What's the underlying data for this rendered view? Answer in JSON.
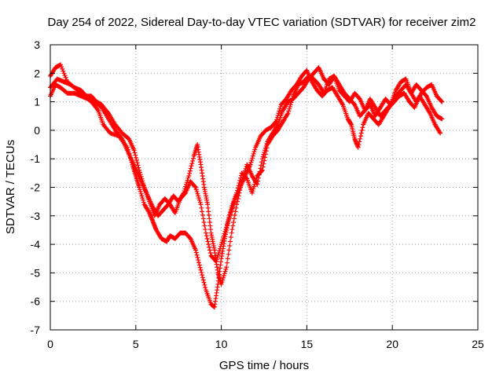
{
  "chart_data": {
    "type": "scatter",
    "title": "Day 254 of 2022, Sidereal Day-to-day VTEC variation (SDTVAR) for receiver zim2",
    "xlabel": "GPS time / hours",
    "ylabel": "SDTVAR / TECUs",
    "xlim": [
      0,
      25
    ],
    "ylim": [
      -7,
      3
    ],
    "xticks": [
      "0",
      "5",
      "10",
      "15",
      "20",
      "25"
    ],
    "yticks": [
      "-7",
      "-6",
      "-5",
      "-4",
      "-3",
      "-2",
      "-1",
      "0",
      "1",
      "2",
      "3"
    ],
    "grid": true,
    "marker": "plus",
    "color": "#ff0000",
    "series": [
      {
        "x": [
          0.0,
          0.4,
          0.8,
          1.2,
          1.6,
          2.0,
          2.4,
          2.8,
          3.1,
          3.5,
          4.0,
          4.5,
          4.8,
          5.0,
          5.2,
          5.5,
          5.8,
          6.0,
          6.2,
          6.5,
          6.8,
          7.0,
          7.3,
          7.6,
          7.9,
          8.2,
          8.5,
          8.8,
          9.1,
          9.4,
          9.6,
          9.8,
          10.0,
          10.2,
          10.4,
          10.6,
          10.8,
          11.1,
          11.4,
          11.7,
          12.0,
          12.3,
          12.6,
          12.9,
          13.2,
          13.5,
          13.8,
          14.1,
          14.4,
          14.7,
          15.0,
          15.3,
          15.6,
          15.9,
          16.2,
          16.5,
          16.8,
          17.1,
          17.4,
          17.6,
          17.8,
          18.0,
          18.3,
          18.6,
          18.9,
          19.2,
          19.5,
          19.8,
          20.1,
          20.4,
          20.7,
          21.0,
          21.3,
          21.6,
          21.9,
          22.2,
          22.5,
          22.8
        ],
        "y": [
          1.5,
          1.8,
          1.7,
          1.6,
          1.4,
          1.2,
          1.0,
          0.7,
          0.2,
          -0.1,
          -0.2,
          -0.6,
          -1.2,
          -1.6,
          -2.0,
          -2.6,
          -2.9,
          -3.2,
          -3.5,
          -3.8,
          -3.9,
          -3.7,
          -3.8,
          -3.6,
          -3.6,
          -3.8,
          -4.2,
          -4.9,
          -5.6,
          -6.1,
          -6.2,
          -5.4,
          -4.5,
          -3.8,
          -3.2,
          -2.8,
          -2.4,
          -2.0,
          -1.6,
          -1.2,
          -0.6,
          -0.2,
          0.0,
          0.1,
          0.3,
          0.9,
          1.1,
          1.4,
          1.6,
          1.9,
          2.1,
          1.7,
          1.4,
          1.2,
          1.4,
          1.5,
          1.2,
          0.9,
          0.4,
          0.2,
          -0.3,
          -0.6,
          0.2,
          0.6,
          0.4,
          0.2,
          0.5,
          0.8,
          1.0,
          1.2,
          1.3,
          1.0,
          0.8,
          1.2,
          0.9,
          0.6,
          0.2,
          -0.1
        ]
      },
      {
        "x": [
          0.0,
          0.3,
          0.6,
          1.0,
          1.4,
          1.8,
          2.2,
          2.6,
          3.0,
          3.4,
          3.8,
          4.2,
          4.5,
          4.8,
          5.1,
          5.4,
          5.7,
          6.0,
          6.3,
          6.6,
          6.9,
          7.2,
          7.5,
          7.8,
          8.1,
          8.4,
          8.6,
          8.8,
          9.0,
          9.2,
          9.4,
          9.6,
          9.8,
          10.0,
          10.3,
          10.6,
          10.9,
          11.2,
          11.5,
          11.8,
          12.1,
          12.4,
          12.7,
          13.0,
          13.3,
          13.6,
          13.9,
          14.2,
          14.5,
          14.8,
          15.1,
          15.4,
          15.7,
          16.0,
          16.3,
          16.6,
          16.9,
          17.2,
          17.5,
          17.8,
          18.1,
          18.4,
          18.7,
          19.0,
          19.3,
          19.6,
          19.9,
          20.2,
          20.5,
          20.8,
          21.1,
          21.4,
          21.7,
          22.0,
          22.3,
          22.6,
          22.9
        ],
        "y": [
          1.2,
          1.6,
          1.5,
          1.3,
          1.3,
          1.2,
          1.1,
          1.0,
          0.8,
          0.4,
          0.0,
          -0.3,
          -0.7,
          -1.1,
          -1.5,
          -1.9,
          -2.3,
          -2.7,
          -3.0,
          -2.8,
          -2.6,
          -2.3,
          -2.5,
          -2.2,
          -1.6,
          -0.9,
          -0.5,
          -1.2,
          -2.0,
          -2.6,
          -3.6,
          -4.2,
          -5.0,
          -5.4,
          -4.8,
          -3.6,
          -2.6,
          -1.8,
          -1.2,
          -1.6,
          -1.9,
          -1.0,
          -0.4,
          -0.1,
          0.2,
          0.7,
          1.0,
          1.1,
          1.3,
          1.5,
          1.8,
          2.0,
          2.2,
          1.8,
          1.6,
          1.9,
          1.4,
          1.2,
          1.0,
          1.3,
          1.1,
          0.7,
          0.9,
          0.5,
          0.8,
          1.1,
          0.9,
          1.4,
          1.7,
          1.8,
          1.3,
          1.6,
          1.4,
          1.2,
          0.8,
          0.5,
          0.4
        ]
      },
      {
        "x": [
          0.0,
          0.3,
          0.6,
          1.0,
          1.4,
          1.8,
          2.1,
          2.4,
          2.7,
          3.0,
          3.4,
          3.8,
          4.2,
          4.6,
          4.9,
          5.2,
          5.5,
          5.8,
          6.1,
          6.4,
          6.7,
          7.0,
          7.3,
          7.6,
          7.9,
          8.2,
          8.5,
          8.8,
          9.1,
          9.4,
          9.7,
          10.0,
          10.3,
          10.6,
          10.9,
          11.2,
          11.5,
          11.8,
          12.1,
          12.4,
          12.7,
          13.0,
          13.3,
          13.6,
          13.9,
          14.2,
          14.5,
          14.8,
          15.1,
          15.4,
          15.7,
          16.0,
          16.3,
          16.6,
          16.9,
          17.2,
          17.5,
          17.8,
          18.1,
          18.4,
          18.7,
          19.0,
          19.3,
          19.6,
          19.9,
          20.2,
          20.5,
          20.8,
          21.1,
          21.4,
          21.7,
          22.0,
          22.3,
          22.6,
          22.9
        ],
        "y": [
          1.9,
          2.2,
          2.3,
          1.7,
          1.5,
          1.4,
          1.2,
          1.2,
          1.0,
          0.9,
          0.6,
          0.2,
          -0.1,
          -0.3,
          -0.7,
          -1.4,
          -2.0,
          -2.5,
          -3.0,
          -2.6,
          -2.4,
          -2.6,
          -2.9,
          -2.4,
          -2.2,
          -1.8,
          -2.0,
          -2.6,
          -3.6,
          -4.4,
          -4.6,
          -4.0,
          -3.4,
          -2.7,
          -2.2,
          -1.5,
          -1.7,
          -2.2,
          -1.6,
          -1.4,
          -0.5,
          -0.2,
          0.0,
          0.3,
          0.6,
          1.2,
          1.6,
          1.7,
          1.9,
          1.8,
          1.6,
          1.3,
          1.8,
          1.9,
          1.6,
          1.3,
          1.1,
          0.9,
          0.5,
          0.7,
          1.1,
          0.8,
          0.5,
          0.7,
          0.9,
          1.2,
          1.4,
          1.6,
          1.3,
          1.0,
          1.3,
          1.5,
          1.6,
          1.2,
          1.0
        ]
      }
    ]
  }
}
